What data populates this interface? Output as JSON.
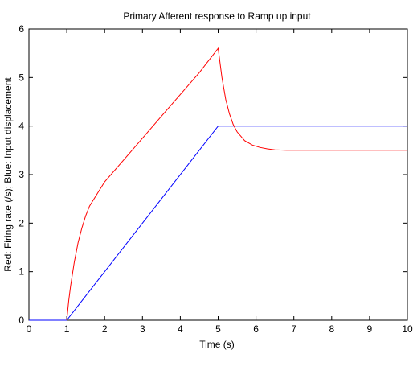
{
  "chart_data": {
    "type": "line",
    "title": "Primary Afferent response to Ramp up input",
    "xlabel": "Time (s)",
    "ylabel": "Red: Firing rate (/s); Blue: Input displacement",
    "xlim": [
      0,
      10
    ],
    "ylim": [
      0,
      6
    ],
    "xticks": [
      "0",
      "1",
      "2",
      "3",
      "4",
      "5",
      "6",
      "7",
      "8",
      "9",
      "10"
    ],
    "yticks": [
      "0",
      "1",
      "2",
      "3",
      "4",
      "5",
      "6"
    ],
    "grid": false,
    "series": [
      {
        "color": "#0000ff",
        "x": [
          0,
          1,
          5,
          10
        ],
        "y": [
          0,
          0,
          4,
          4
        ]
      },
      {
        "color": "#ff0000",
        "x": [
          1,
          1.05,
          1.1,
          1.2,
          1.3,
          1.4,
          1.5,
          1.6,
          1.8,
          2,
          2.5,
          3,
          3.5,
          4,
          4.5,
          4.95,
          5,
          5.1,
          5.2,
          5.3,
          5.4,
          5.5,
          5.7,
          5.9,
          6.1,
          6.3,
          6.5,
          6.8,
          7,
          8,
          9,
          10
        ],
        "y": [
          0,
          0.4,
          0.7,
          1.2,
          1.6,
          1.9,
          2.15,
          2.35,
          2.6,
          2.85,
          3.3,
          3.75,
          4.2,
          4.65,
          5.1,
          5.55,
          5.6,
          5.0,
          4.55,
          4.25,
          4.03,
          3.88,
          3.7,
          3.61,
          3.56,
          3.53,
          3.51,
          3.5,
          3.5,
          3.5,
          3.5,
          3.5
        ]
      }
    ]
  }
}
